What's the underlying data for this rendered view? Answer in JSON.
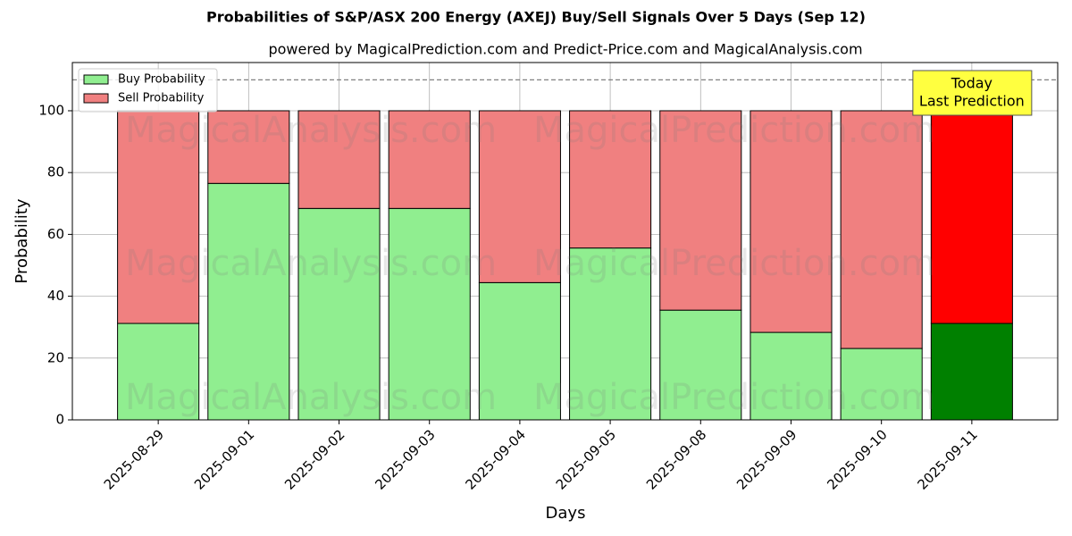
{
  "chart_data": {
    "type": "stacked-bar",
    "title": "Probabilities of S&P/ASX 200 Energy (AXEJ) Buy/Sell Signals Over 5 Days (Sep 12)",
    "subtitle": "powered by MagicalPrediction.com and Predict-Price.com and MagicalAnalysis.com",
    "x_label": "Days",
    "y_label": "Probability",
    "categories": [
      "2025-08-29",
      "2025-09-01",
      "2025-09-02",
      "2025-09-03",
      "2025-09-04",
      "2025-09-05",
      "2025-09-08",
      "2025-09-09",
      "2025-09-10",
      "2025-09-11"
    ],
    "series": [
      {
        "name": "Buy Probability",
        "color": "#90ee90",
        "highlight_color": "#008000",
        "values": [
          31.2,
          76.5,
          68.4,
          68.4,
          44.4,
          55.6,
          35.5,
          28.3,
          23.1,
          31.2
        ]
      },
      {
        "name": "Sell Probability",
        "color": "#f08080",
        "highlight_color": "#ff0000",
        "values": [
          68.8,
          23.5,
          31.6,
          31.6,
          55.6,
          44.4,
          64.5,
          71.7,
          76.9,
          68.8
        ]
      }
    ],
    "ylim": [
      0,
      115.6
    ],
    "yticks": [
      0,
      20,
      40,
      60,
      80,
      100
    ],
    "hline": 110,
    "grid": true,
    "legend": "upper left",
    "annotation": [
      "Today",
      "Last Prediction"
    ],
    "annotation_color": "#ffff40",
    "watermarks": [
      "MagicalAnalysis.com",
      "MagicalPrediction.com"
    ]
  }
}
